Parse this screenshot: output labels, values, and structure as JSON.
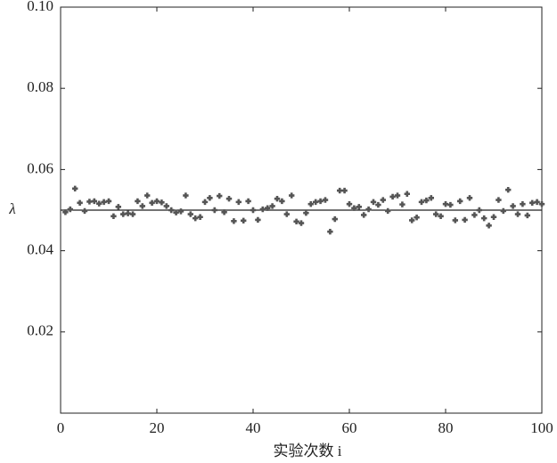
{
  "chart_data": {
    "type": "scatter",
    "xlabel": "实验次数 i",
    "ylabel": "λ",
    "xlim": [
      0,
      100
    ],
    "xticks": [
      0,
      20,
      40,
      60,
      80,
      100
    ],
    "ylim": [
      0,
      0.1
    ],
    "yticks": [
      0.02,
      0.04,
      0.06,
      0.08,
      {
        "value": 0.1,
        "label": "0.10"
      }
    ],
    "reference_line": 0.05,
    "reference_color": "#222",
    "series": [
      {
        "color": "#555",
        "x": [
          1,
          2,
          3,
          4,
          5,
          6,
          7,
          8,
          9,
          10,
          11,
          12,
          13,
          14,
          15,
          16,
          17,
          18,
          19,
          20,
          21,
          22,
          23,
          24,
          25,
          26,
          27,
          28,
          29,
          30,
          31,
          32,
          33,
          34,
          35,
          36,
          37,
          38,
          39,
          40,
          41,
          42,
          43,
          44,
          45,
          46,
          47,
          48,
          49,
          50,
          51,
          52,
          53,
          54,
          55,
          56,
          57,
          58,
          59,
          60,
          61,
          62,
          63,
          64,
          65,
          66,
          67,
          68,
          69,
          70,
          71,
          72,
          73,
          74,
          75,
          76,
          77,
          78,
          79,
          80,
          81,
          82,
          83,
          84,
          85,
          86,
          87,
          88,
          89,
          90,
          91,
          92,
          93,
          94,
          95,
          96,
          97,
          98,
          99,
          100
        ],
        "values": [
          0.0495,
          0.0502,
          0.0553,
          0.0518,
          0.0498,
          0.0521,
          0.0522,
          0.0516,
          0.052,
          0.0522,
          0.0485,
          0.0508,
          0.049,
          0.0492,
          0.049,
          0.0522,
          0.051,
          0.0536,
          0.0518,
          0.0522,
          0.0519,
          0.051,
          0.05,
          0.0494,
          0.0497,
          0.0536,
          0.049,
          0.048,
          0.0483,
          0.052,
          0.053,
          0.05,
          0.0535,
          0.0495,
          0.0528,
          0.0473,
          0.052,
          0.0474,
          0.0522,
          0.05,
          0.0476,
          0.0502,
          0.0505,
          0.051,
          0.0528,
          0.0522,
          0.049,
          0.0536,
          0.0472,
          0.0468,
          0.0493,
          0.0515,
          0.052,
          0.0522,
          0.0525,
          0.0447,
          0.0478,
          0.0548,
          0.0548,
          0.0515,
          0.0505,
          0.0508,
          0.0488,
          0.0502,
          0.052,
          0.0513,
          0.0525,
          0.0498,
          0.0533,
          0.0536,
          0.0514,
          0.054,
          0.0475,
          0.0482,
          0.052,
          0.0524,
          0.053,
          0.049,
          0.0485,
          0.0515,
          0.0513,
          0.0475,
          0.0522,
          0.0476,
          0.053,
          0.0488,
          0.05,
          0.048,
          0.0462,
          0.0483,
          0.0525,
          0.0498,
          0.055,
          0.051,
          0.049,
          0.0515,
          0.0487,
          0.0518,
          0.052,
          0.0515
        ]
      }
    ]
  }
}
